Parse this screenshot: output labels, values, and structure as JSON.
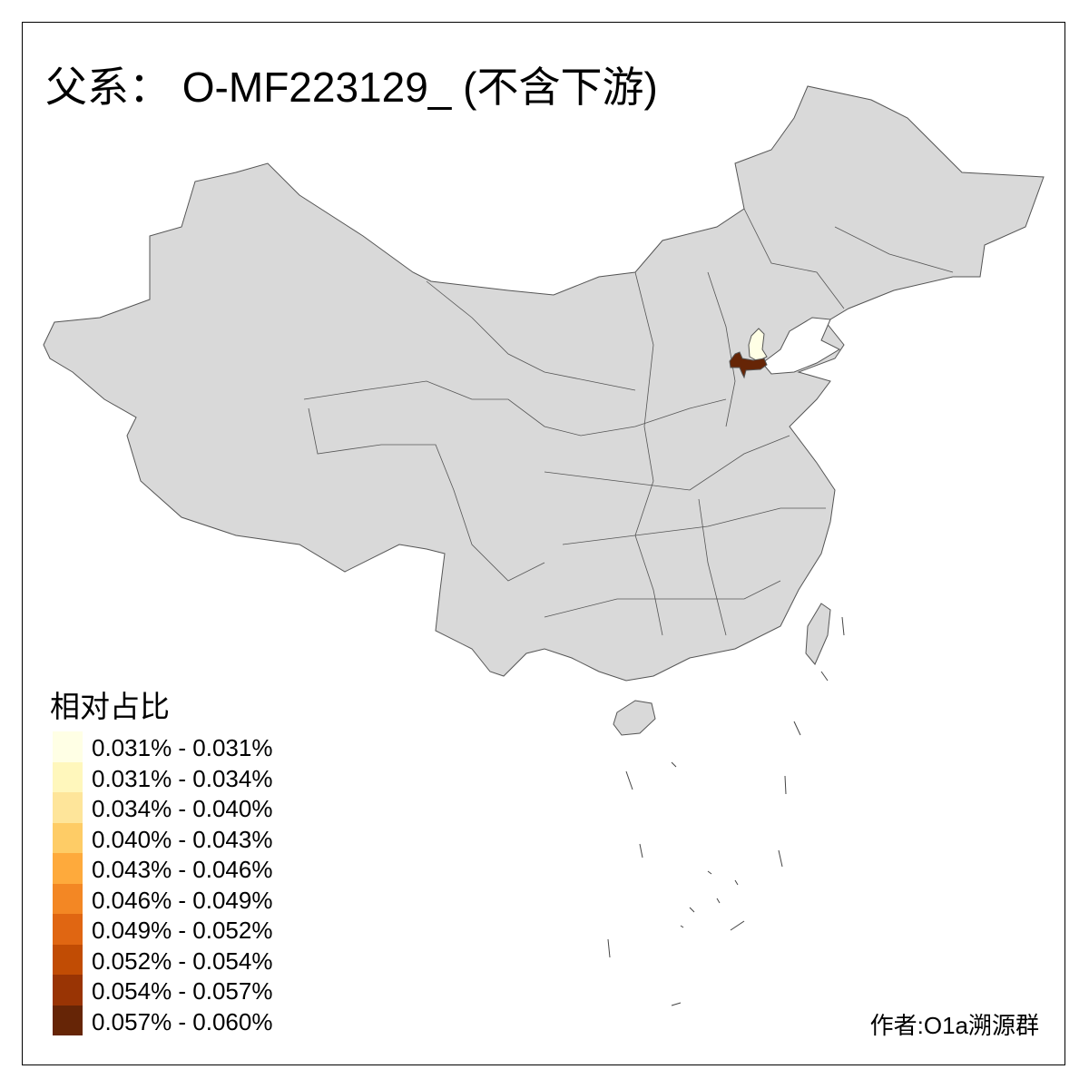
{
  "title": "父系： O-MF223129_ (不含下游)",
  "legend": {
    "title": "相对占比",
    "items": [
      {
        "label": "0.031% - 0.031%",
        "color": "#FFFFE5"
      },
      {
        "label": "0.031% - 0.034%",
        "color": "#FFF7BC"
      },
      {
        "label": "0.034% - 0.040%",
        "color": "#FEE59A"
      },
      {
        "label": "0.040% - 0.043%",
        "color": "#FECC66"
      },
      {
        "label": "0.043% - 0.046%",
        "color": "#FEAA3C"
      },
      {
        "label": "0.046% - 0.049%",
        "color": "#F38724"
      },
      {
        "label": "0.049% - 0.052%",
        "color": "#E06612"
      },
      {
        "label": "0.052% - 0.054%",
        "color": "#C14C04"
      },
      {
        "label": "0.054% - 0.057%",
        "color": "#993404"
      },
      {
        "label": "0.057% - 0.060%",
        "color": "#662506"
      }
    ]
  },
  "map": {
    "base_color": "#D9D9D9",
    "border_color": "#555555",
    "highlighted_regions": [
      {
        "region": "Tianjin",
        "color": "#FFFFE5"
      },
      {
        "region": "Cangzhou",
        "color": "#662506"
      }
    ]
  },
  "credit": "作者:O1a溯源群"
}
